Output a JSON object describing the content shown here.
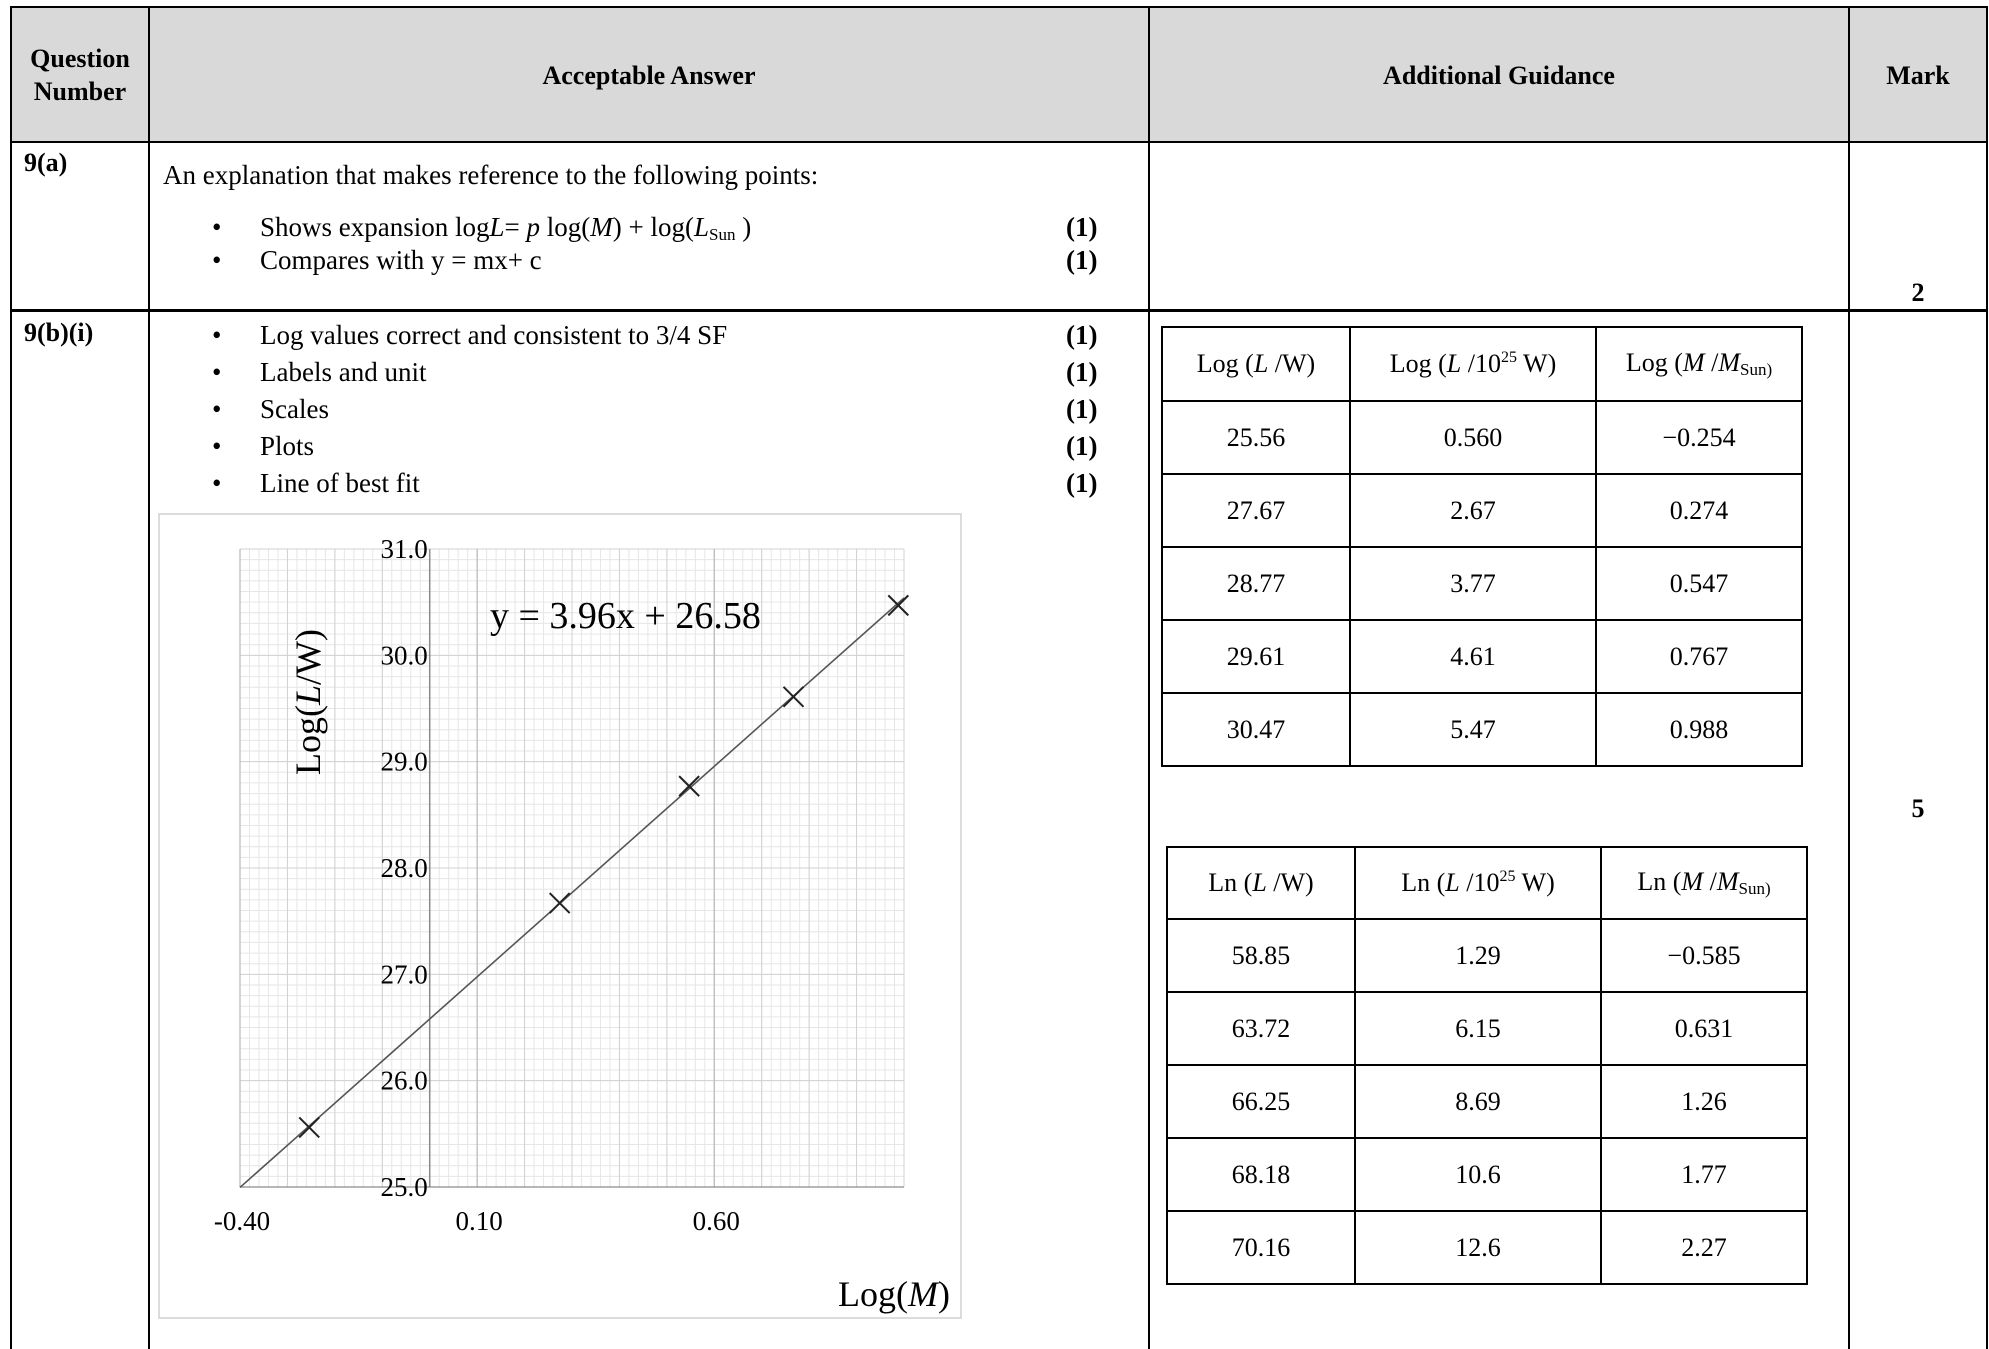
{
  "header": {
    "question_number": "Question Number",
    "acceptable_answer": "Acceptable Answer",
    "additional_guidance": "Additional Guidance",
    "mark": "Mark"
  },
  "row_a": {
    "question_number": "9(a)",
    "intro": "An explanation that makes reference to the following points:",
    "points": [
      {
        "text_html": "Shows expansion log<i>L</i>= <i>p</i> log(<i>M</i>) + log(<i>L</i><sub>Sun</sub> )",
        "mark": "(1)"
      },
      {
        "text_html": "Compares with y = mx+ c",
        "mark": "(1)"
      }
    ],
    "mark": "2"
  },
  "row_b": {
    "question_number": "9(b)(i)",
    "points": [
      {
        "text": "Log values correct  and consistent to 3/4 SF",
        "mark": "(1)"
      },
      {
        "text": "Labels and unit",
        "mark": "(1)"
      },
      {
        "text": "Scales",
        "mark": "(1)"
      },
      {
        "text": "Plots",
        "mark": "(1)"
      },
      {
        "text": "Line of best fit",
        "mark": "(1)"
      }
    ],
    "mark": "5"
  },
  "log_table": {
    "headers_html": [
      "Log (<i>L</i> /W)",
      "Log (<i>L</i> /10<sup>25</sup> W)",
      "Log (<i>M</i> /<i>M</i><sub>Sun)</sub>"
    ],
    "rows": [
      [
        "25.56",
        "0.560",
        "−0.254"
      ],
      [
        "27.67",
        "2.67",
        "0.274"
      ],
      [
        "28.77",
        "3.77",
        "0.547"
      ],
      [
        "29.61",
        "4.61",
        "0.767"
      ],
      [
        "30.47",
        "5.47",
        "0.988"
      ]
    ]
  },
  "ln_table": {
    "headers_html": [
      "Ln (<i>L</i> /W)",
      "Ln (<i>L</i> /10<sup>25</sup> W)",
      "Ln (<i>M</i> /<i>M</i><sub>Sun)</sub>"
    ],
    "rows": [
      [
        "58.85",
        "1.29",
        "−0.585"
      ],
      [
        "63.72",
        "6.15",
        "0.631"
      ],
      [
        "66.25",
        "8.69",
        "1.26"
      ],
      [
        "68.18",
        "10.6",
        "1.77"
      ],
      [
        "70.16",
        "12.6",
        "2.27"
      ]
    ]
  },
  "chart_data": {
    "type": "scatter",
    "title": "",
    "xlabel_html": "Log(<i>M</i>)",
    "ylabel_html": "Log(<i>L</i>/W)",
    "x_ticks": [
      "-0.40",
      "0.10",
      "0.60"
    ],
    "x_tick_values": [
      -0.4,
      0.1,
      0.6
    ],
    "y_ticks": [
      "25.0",
      "26.0",
      "27.0",
      "28.0",
      "29.0",
      "30.0",
      "31.0"
    ],
    "y_tick_values": [
      25,
      26,
      27,
      28,
      29,
      30,
      31
    ],
    "xlim": [
      -0.4,
      1.0
    ],
    "ylim": [
      25.0,
      31.0
    ],
    "grid": true,
    "points": [
      {
        "x": -0.254,
        "y": 25.56
      },
      {
        "x": 0.274,
        "y": 27.67
      },
      {
        "x": 0.547,
        "y": 28.77
      },
      {
        "x": 0.767,
        "y": 29.61
      },
      {
        "x": 0.988,
        "y": 30.47
      }
    ],
    "trendline": {
      "slope": 3.96,
      "intercept": 26.58
    },
    "equation": "y = 3.96x + 26.58",
    "colors": {
      "grid_minor": "#e6e6e6",
      "grid_major": "#bdbdbd",
      "line": "#555555",
      "marker": "#222222"
    }
  }
}
